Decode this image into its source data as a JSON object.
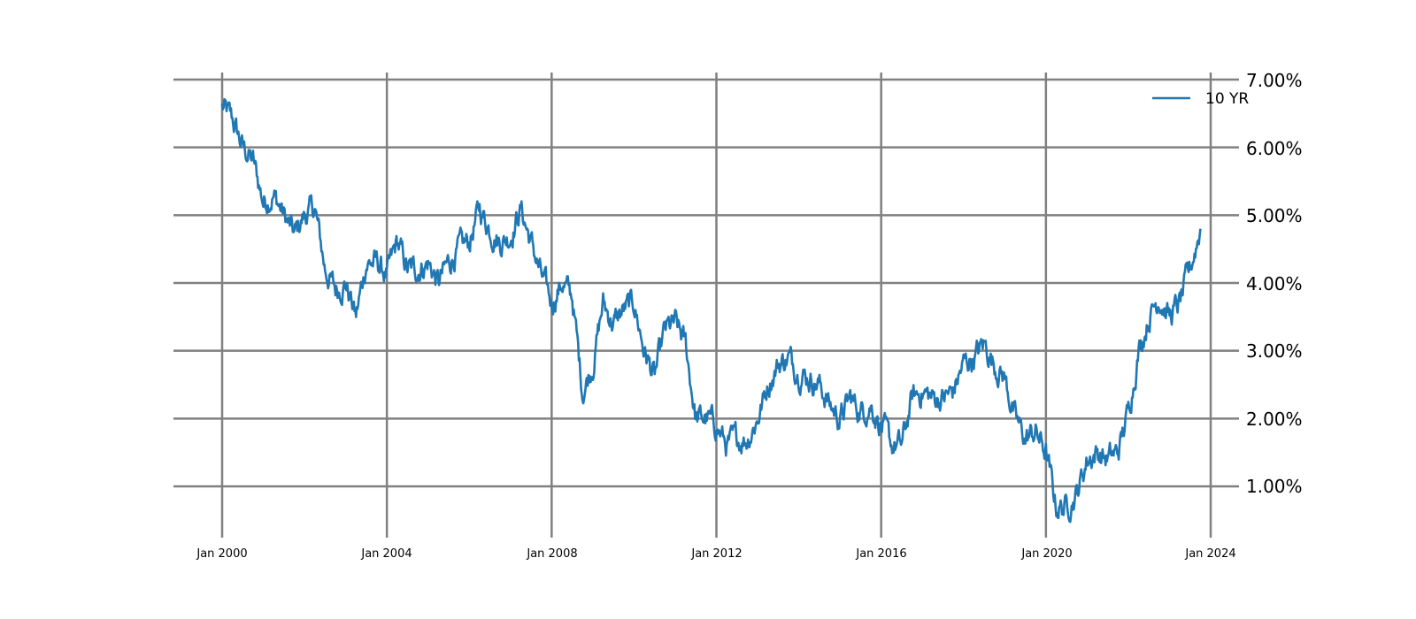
{
  "chart_data": {
    "type": "line",
    "title": "",
    "xlabel": "",
    "ylabel": "",
    "grid": true,
    "legend_position": "upper right",
    "y_axis_side": "right",
    "ylim": [
      0.3,
      7.0
    ],
    "xlim": [
      "1999-09",
      "2024-06"
    ],
    "x_tick_labels": [
      "Jan 2000",
      "Jan 2004",
      "Jan 2008",
      "Jan 2012",
      "Jan 2016",
      "Jan 2020",
      "Jan 2024"
    ],
    "y_tick_labels": [
      "1.00%",
      "2.00%",
      "3.00%",
      "4.00%",
      "5.00%",
      "6.00%",
      "7.00%"
    ],
    "y_tick_values": [
      1,
      2,
      3,
      4,
      5,
      6,
      7
    ],
    "series": [
      {
        "name": "10 YR",
        "color": "#1f77b4",
        "x_start_year": 2000.0,
        "x_step_years": 0.25,
        "values": [
          6.6,
          6.4,
          6.0,
          5.8,
          5.2,
          5.3,
          5.0,
          4.7,
          5.0,
          5.1,
          4.2,
          3.9,
          4.0,
          3.5,
          4.3,
          4.3,
          4.1,
          4.6,
          4.2,
          4.2,
          4.3,
          4.0,
          4.3,
          4.5,
          4.6,
          5.1,
          4.8,
          4.6,
          4.7,
          5.1,
          4.6,
          4.1,
          3.7,
          4.0,
          3.8,
          2.4,
          2.8,
          3.7,
          3.4,
          3.6,
          3.7,
          3.0,
          2.6,
          3.3,
          3.4,
          3.1,
          2.0,
          2.0,
          1.9,
          1.6,
          1.7,
          1.7,
          2.0,
          2.5,
          2.8,
          2.9,
          2.7,
          2.6,
          2.5,
          2.2,
          2.0,
          2.3,
          2.1,
          2.2,
          1.9,
          1.6,
          1.6,
          2.3,
          2.4,
          2.3,
          2.3,
          2.4,
          2.8,
          2.9,
          3.1,
          2.8,
          2.6,
          2.0,
          1.7,
          1.8,
          1.5,
          0.7,
          0.7,
          0.9,
          1.4,
          1.5,
          1.4,
          1.5,
          2.1,
          3.0,
          3.5,
          3.8,
          3.5,
          3.7,
          4.2,
          4.8
        ]
      }
    ]
  },
  "legend": {
    "label": "10 YR"
  },
  "axes": {
    "x_ticks": [
      "Jan 2000",
      "Jan 2004",
      "Jan 2008",
      "Jan 2012",
      "Jan 2016",
      "Jan 2020",
      "Jan 2024"
    ],
    "y_ticks": [
      "1.00%",
      "2.00%",
      "3.00%",
      "4.00%",
      "5.00%",
      "6.00%",
      "7.00%"
    ]
  },
  "colors": {
    "line": "#1f77b4",
    "grid": "#808080",
    "text": "#000000",
    "background": "#ffffff"
  }
}
